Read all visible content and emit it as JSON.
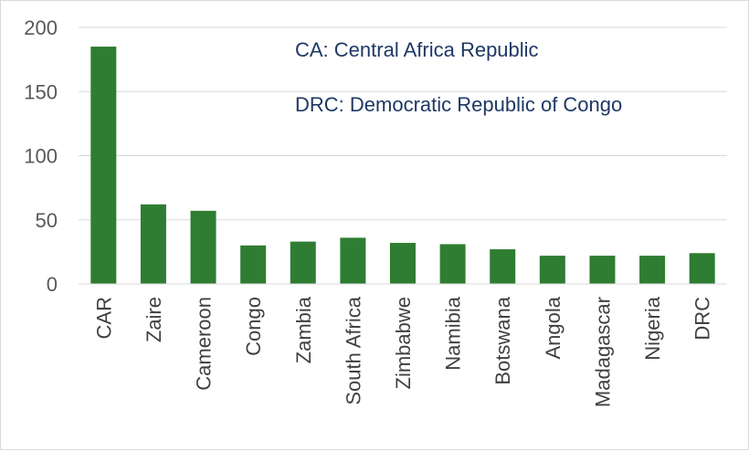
{
  "chart_data": {
    "type": "bar",
    "categories": [
      "CAR",
      "Zaire",
      "Cameroon",
      "Congo",
      "Zambia",
      "South Africa",
      "Zimbabwe",
      "Namibia",
      "Botswana",
      "Angola",
      "Madagascar",
      "Nigeria",
      "DRC"
    ],
    "values": [
      185,
      62,
      57,
      30,
      33,
      36,
      32,
      31,
      27,
      22,
      22,
      22,
      24
    ],
    "yticks": [
      0,
      50,
      100,
      150,
      200
    ],
    "ylim": [
      0,
      200
    ],
    "grid": true,
    "title": "",
    "xlabel": "",
    "ylabel": "",
    "annotations": [
      "CA: Central Africa Republic",
      "DRC: Democratic Republic of Congo"
    ],
    "colors": {
      "bar": "#2e7d32",
      "grid": "#d9d9d9",
      "tick_text": "#595959",
      "annotation_text": "#1f3864"
    }
  }
}
